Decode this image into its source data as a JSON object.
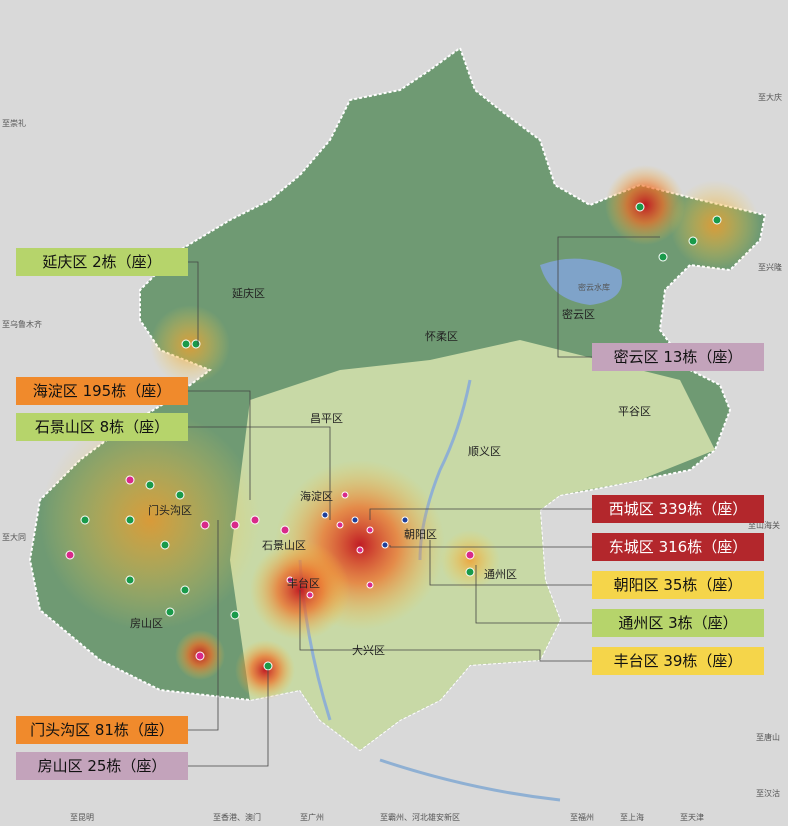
{
  "callouts": [
    {
      "label": "延庆区 2栋（座）"
    },
    {
      "label": "海淀区 195栋（座）"
    },
    {
      "label": "石景山区 8栋（座）"
    },
    {
      "label": "门头沟区 81栋（座）"
    },
    {
      "label": "房山区 25栋（座）"
    },
    {
      "label": "密云区 13栋（座）"
    },
    {
      "label": "西城区 339栋（座）"
    },
    {
      "label": "东城区 316栋（座）"
    },
    {
      "label": "朝阳区 35栋（座）"
    },
    {
      "label": "通州区 3栋（座）"
    },
    {
      "label": "丰台区 39栋（座）"
    }
  ],
  "map_labels": [
    "延庆区",
    "怀柔区",
    "密云区",
    "平谷区",
    "昌平区",
    "顺义区",
    "海淀区",
    "朝阳区",
    "通州区",
    "门头沟区",
    "石景山区",
    "丰台区",
    "房山区",
    "大兴区",
    "密云水库"
  ],
  "edge_labels": [
    "至崇礼",
    "至乌鲁木齐",
    "至大庆",
    "至兴隆",
    "至山海关",
    "至唐山",
    "至汉沽",
    "至天津",
    "至上海",
    "至福州",
    "至霸州、河北雄安新区",
    "至广州",
    "至香港、澳门",
    "至昆明",
    "至大同"
  ]
}
